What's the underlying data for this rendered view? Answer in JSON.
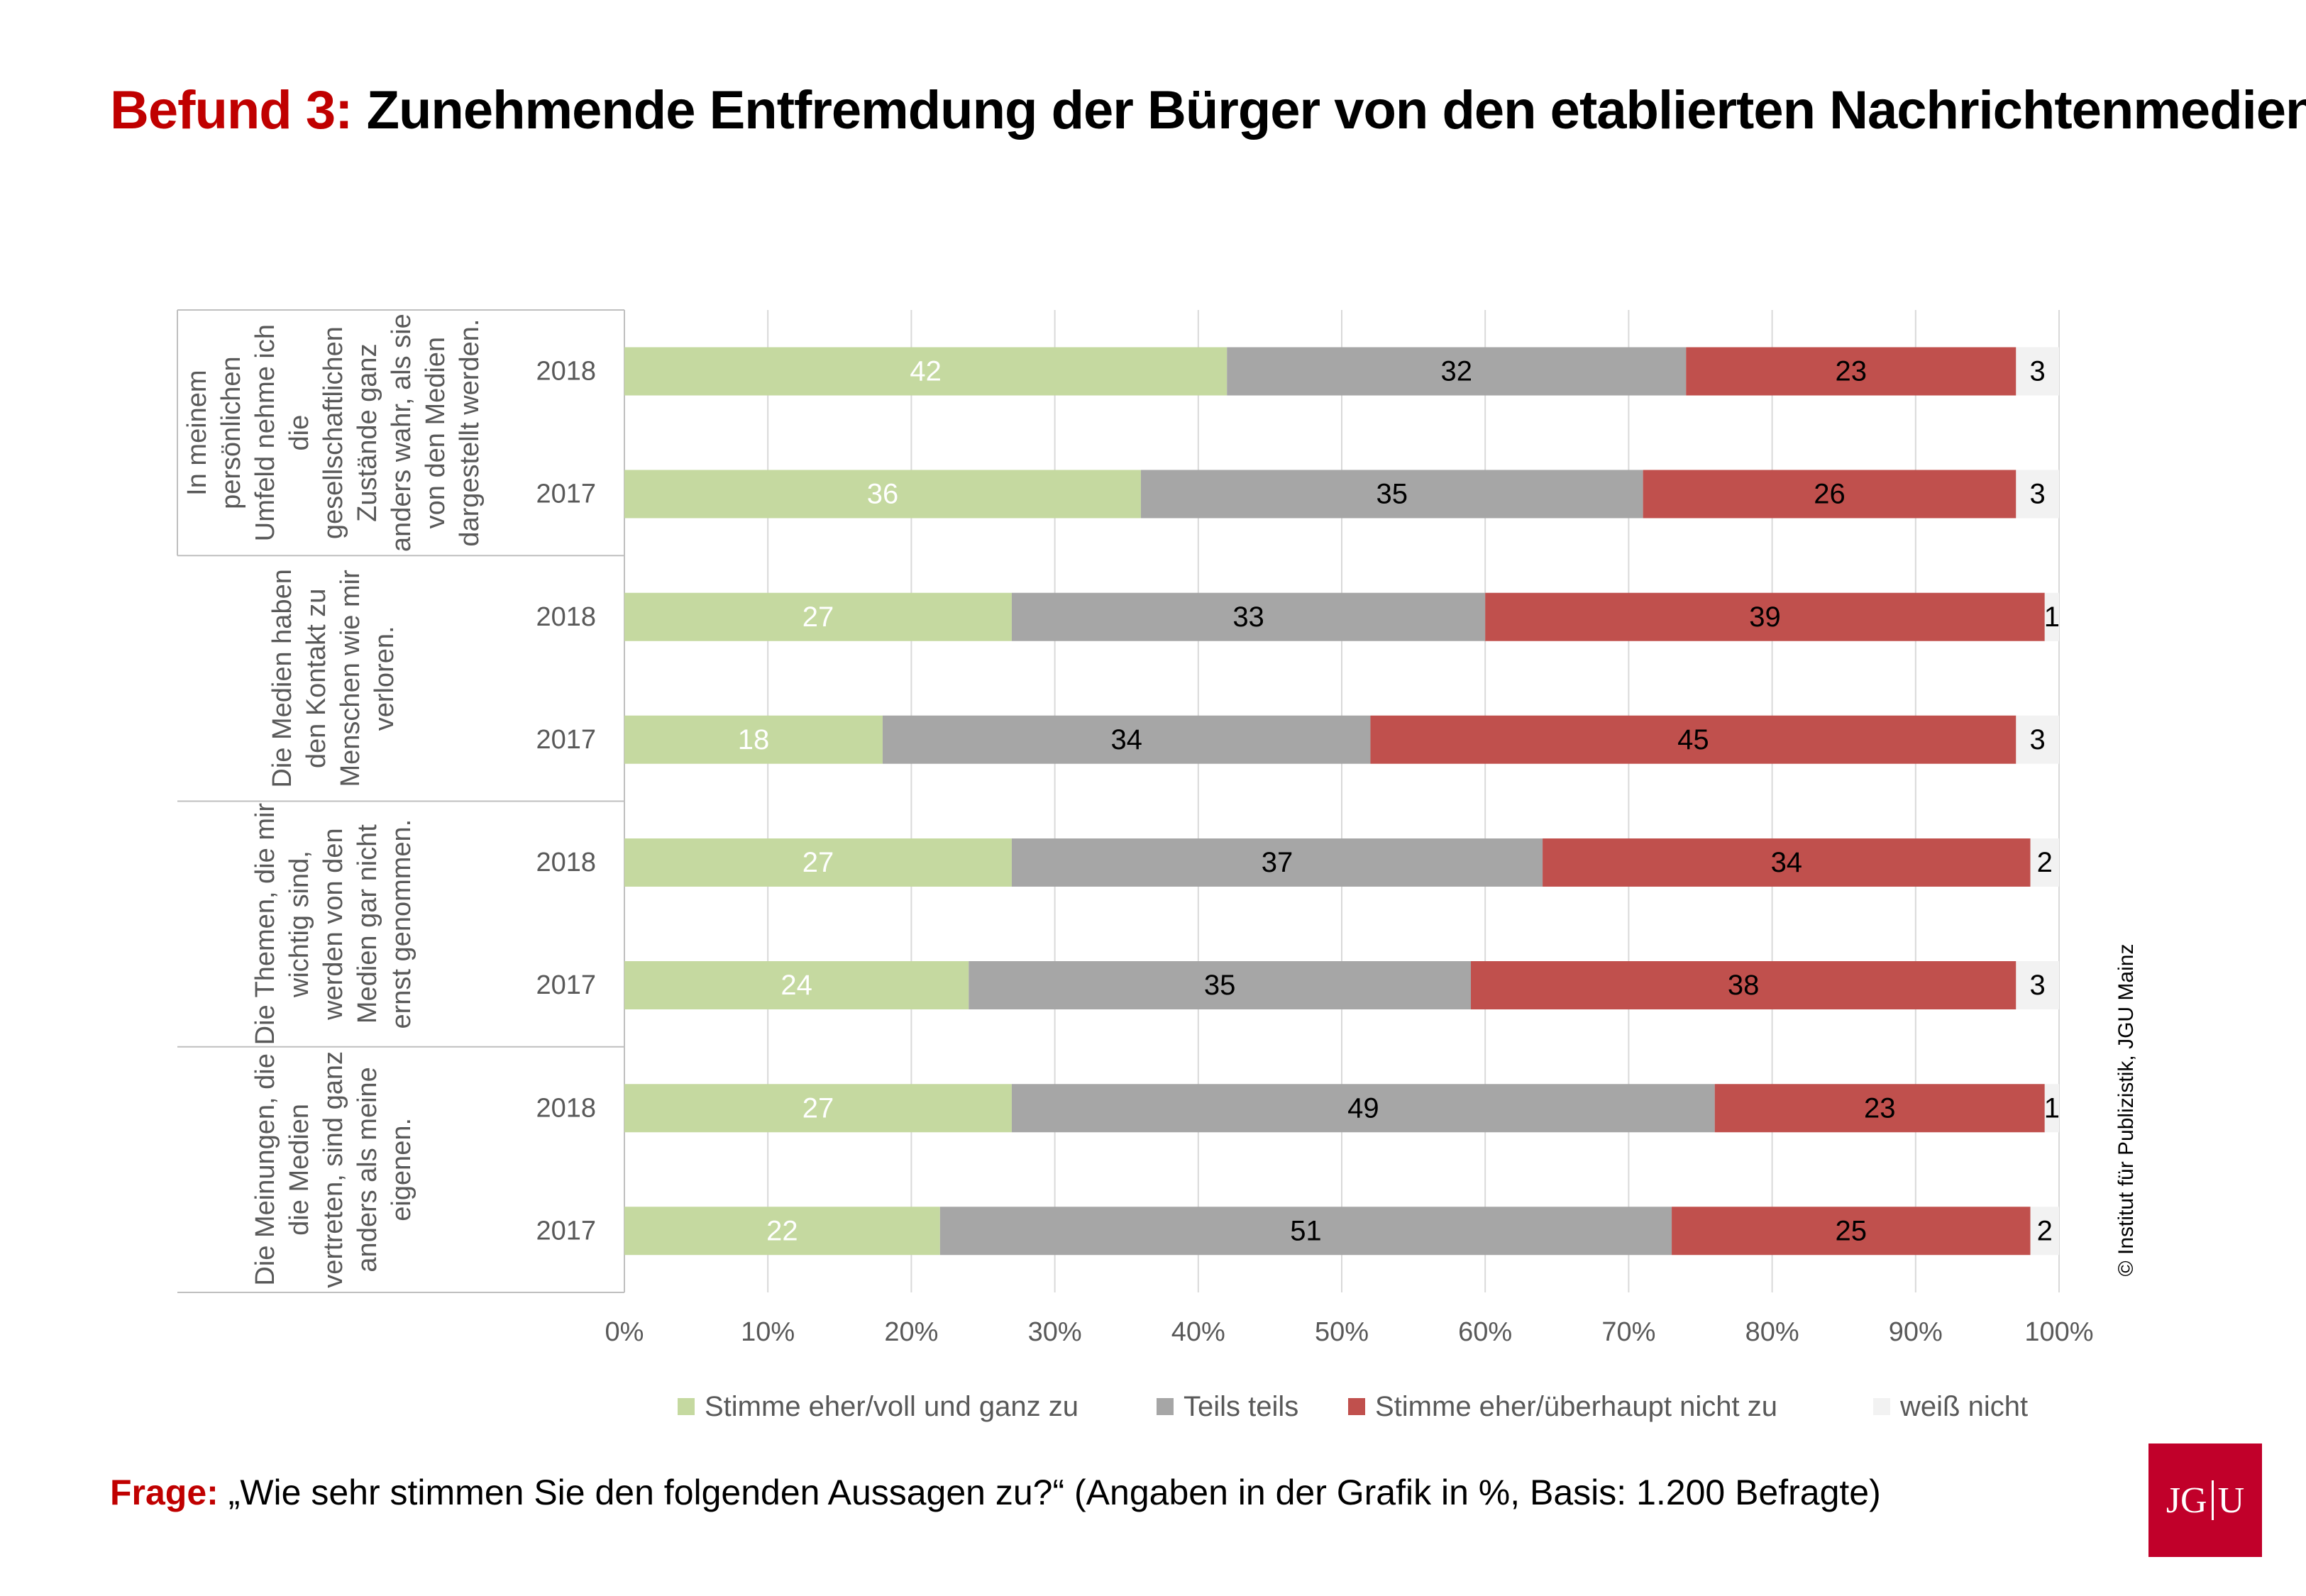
{
  "header": {
    "title_prefix": "Befund 3:",
    "title_text": "Zunehmende Entfremdung der Bürger von den etablierten Nachrichtenmedien"
  },
  "footer": {
    "question_prefix": "Frage:",
    "question_text": "„Wie sehr stimmen Sie den folgenden Aussagen zu?“ (Angaben in der Grafik in %, Basis: 1.200 Befragte)",
    "copyright": "© Institut für Publizistik, JGU Mainz",
    "logo_left": "JG",
    "logo_right": "U"
  },
  "chart_data": {
    "type": "bar",
    "orientation": "horizontal",
    "stacked": true,
    "xlim": [
      0,
      100
    ],
    "xticks": [
      "0%",
      "10%",
      "20%",
      "30%",
      "40%",
      "50%",
      "60%",
      "70%",
      "80%",
      "90%",
      "100%"
    ],
    "grid": true,
    "legend_position": "bottom",
    "groups": [
      {
        "label": "In meinem persönlichen Umfeld nehme ich die gesellschaftlichen Zustände ganz anders wahr, als sie von den Medien dargestellt werden.",
        "label_lines": [
          "In meinem",
          "persönlichen",
          "Umfeld nehme ich",
          "die",
          "gesellschaftlichen",
          "Zustände ganz",
          "anders wahr, als sie",
          "von den Medien",
          "dargestellt werden."
        ],
        "years": [
          "2018",
          "2017"
        ]
      },
      {
        "label": "Die Medien haben den Kontakt zu Menschen wie mir verloren.",
        "label_lines": [
          "Die Medien haben",
          "den Kontakt zu",
          "Menschen wie mir",
          "verloren."
        ],
        "years": [
          "2018",
          "2017"
        ]
      },
      {
        "label": "Die Themen, die mir wichtig sind, werden von den Medien gar nicht ernst genommen.",
        "label_lines": [
          "Die Themen, die mir",
          "wichtig sind,",
          "werden von den",
          "Medien gar nicht",
          "ernst genommen."
        ],
        "years": [
          "2018",
          "2017"
        ]
      },
      {
        "label": "Die Meinungen, die die Medien vertreten, sind ganz anders als meine eigenen.",
        "label_lines": [
          "Die Meinungen, die",
          "die Medien",
          "vertreten, sind ganz",
          "anders als meine",
          "eigenen."
        ],
        "years": [
          "2018",
          "2017"
        ]
      }
    ],
    "series": [
      {
        "name": "Stimme eher/voll und ganz zu",
        "color": "#c5d9a0",
        "label_color": "#ffffff",
        "values": [
          42,
          36,
          27,
          18,
          27,
          24,
          27,
          22
        ]
      },
      {
        "name": "Teils teils",
        "color": "#a6a6a6",
        "label_color": "#000000",
        "values": [
          32,
          35,
          33,
          34,
          37,
          35,
          49,
          51
        ]
      },
      {
        "name": "Stimme eher/überhaupt nicht zu",
        "color": "#c0504d",
        "label_color": "#000000",
        "values": [
          23,
          26,
          39,
          45,
          34,
          38,
          23,
          25
        ]
      },
      {
        "name": "weiß nicht",
        "color": "#f2f2f2",
        "label_color": "#000000",
        "values": [
          3,
          3,
          1,
          3,
          2,
          3,
          1,
          2
        ]
      }
    ]
  }
}
